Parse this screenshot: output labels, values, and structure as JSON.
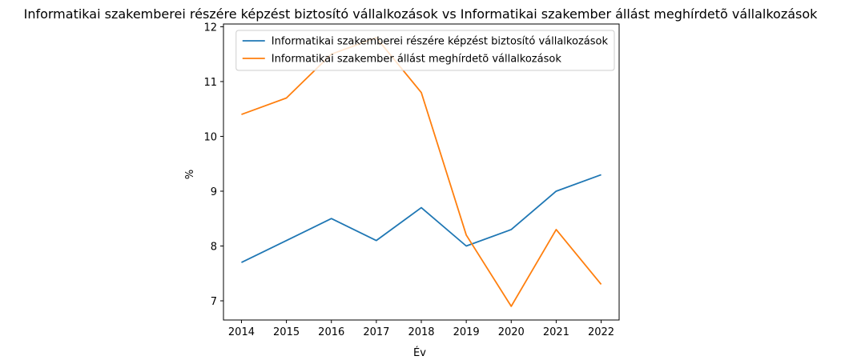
{
  "chart_data": {
    "type": "line",
    "title": "Informatikai szakemberei részére képzést biztosító vállalkozások vs Informatikai szakember állást meghírdetõ vállalkozások",
    "xlabel": "Év",
    "ylabel": "%",
    "x": [
      2014,
      2015,
      2016,
      2017,
      2018,
      2019,
      2020,
      2021,
      2022
    ],
    "ylim": [
      6.65,
      12.05
    ],
    "yticks": [
      7,
      8,
      9,
      10,
      11,
      12
    ],
    "grid": false,
    "legend_position": "upper-right",
    "series": [
      {
        "name": "Informatikai szakemberei részére képzést biztosító vállalkozások",
        "color": "#1f77b4",
        "values": [
          7.7,
          8.1,
          8.5,
          8.1,
          8.7,
          8.0,
          8.3,
          9.0,
          9.3
        ]
      },
      {
        "name": "Informatikai szakember állást meghírdetõ vállalkozások",
        "color": "#ff7f0e",
        "values": [
          10.4,
          10.7,
          11.5,
          11.8,
          10.8,
          8.2,
          6.9,
          8.3,
          7.3
        ]
      }
    ]
  }
}
